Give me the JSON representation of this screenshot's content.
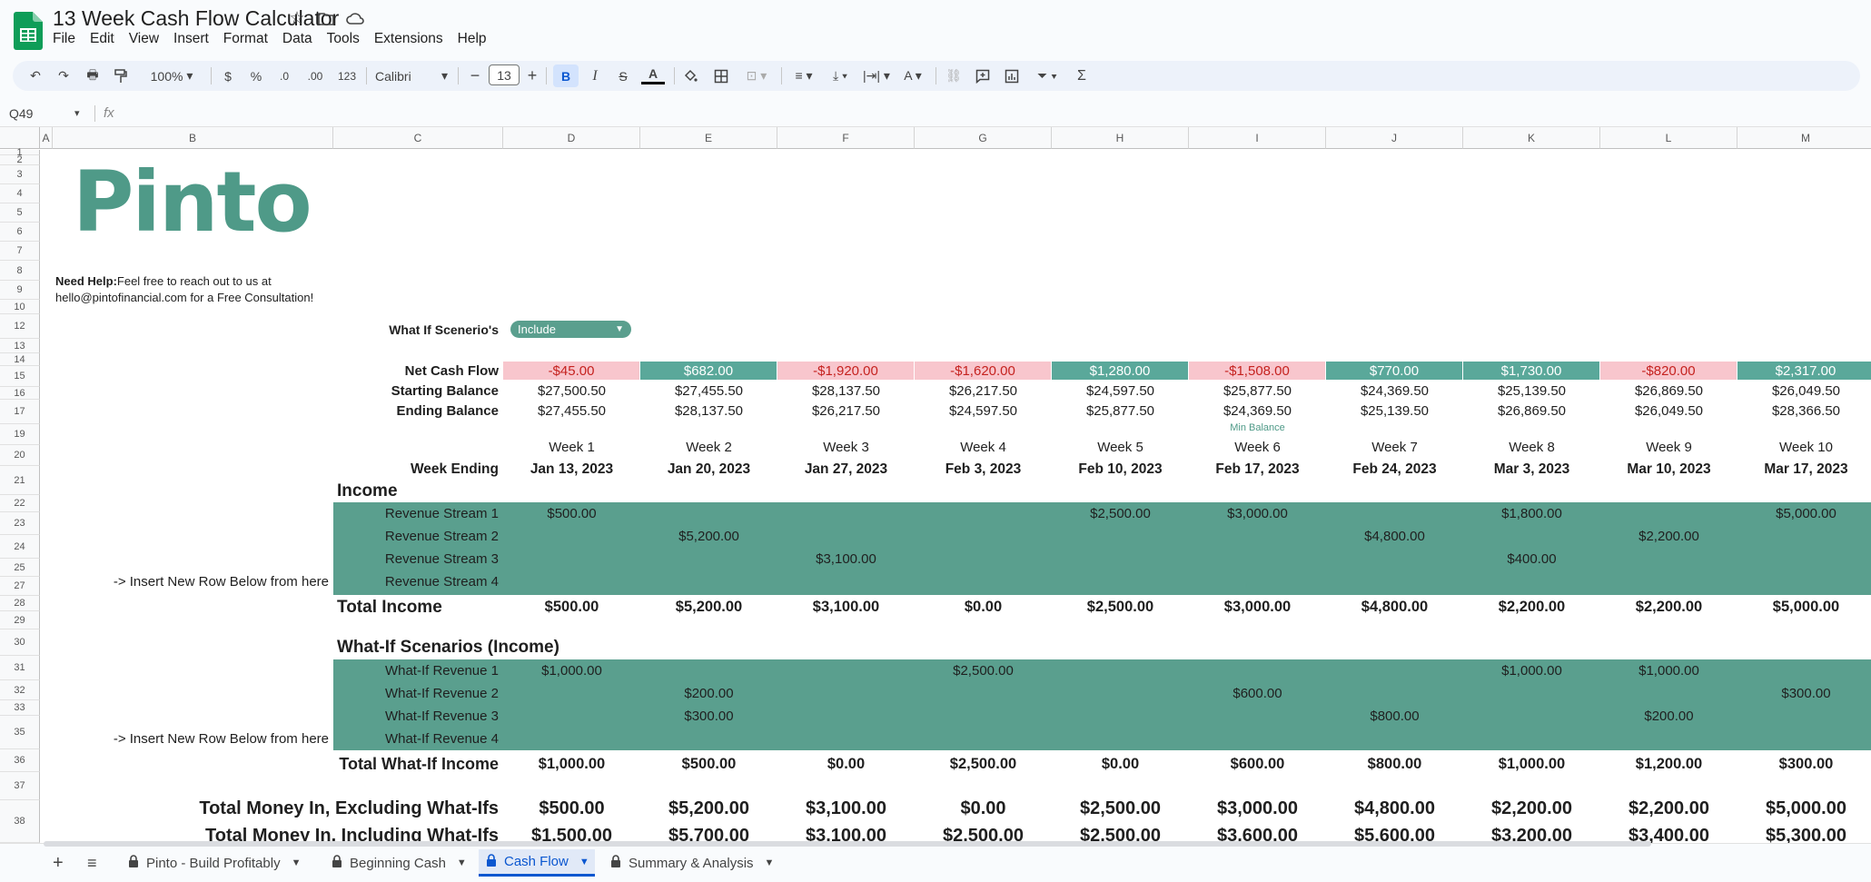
{
  "doc": {
    "title": "13 Week Cash Flow Calculator",
    "menu": [
      "File",
      "Edit",
      "View",
      "Insert",
      "Format",
      "Data",
      "Tools",
      "Extensions",
      "Help"
    ]
  },
  "toolbar": {
    "zoom": "100%",
    "currency": "$",
    "percent": "%",
    "dec_less": ".0",
    "dec_more": ".00",
    "number_format": "123",
    "font": "Calibri",
    "font_size": "13",
    "bold": "B",
    "italic": "I",
    "strike": "S",
    "text_color": "A"
  },
  "formula_bar": {
    "name_box": "Q49",
    "fx": "fx"
  },
  "columns": [
    "A",
    "B",
    "C",
    "D",
    "E",
    "F",
    "G",
    "H",
    "I",
    "J",
    "K",
    "L",
    "M"
  ],
  "rows": [
    "1",
    "2",
    "3",
    "4",
    "5",
    "6",
    "7",
    "8",
    "9",
    "10",
    "12",
    "13",
    "14",
    "15",
    "16",
    "17",
    "19",
    "20",
    "21",
    "22",
    "23",
    "24",
    "25",
    "27",
    "28",
    "29",
    "30",
    "31",
    "32",
    "33",
    "35",
    "36",
    "37",
    "38"
  ],
  "sheet": {
    "brand": "Pinto",
    "help_label": "Need Help:",
    "help_line1": " Feel free to reach out to us at",
    "help_line2": "hello@pintofinancial.com for a Free Consultation!",
    "whatif_label": "What If Scenerio's",
    "whatif_value": "Include",
    "min_balance": "Min Balance",
    "net_label": "Net Cash Flow",
    "start_label": "Starting Balance",
    "end_label": "Ending Balance",
    "week_ending_label": "Week Ending",
    "income_header": "Income",
    "whatif_header": "What-If Scenarios (Income)",
    "insert_note": "-> Insert New Row Below from here",
    "total_income_label": "Total Income",
    "total_whatif_label": "Total What-If Income",
    "money_in_ex_label": "Total Money In, Excluding What-Ifs",
    "money_in_inc_label": "Total Money In, Including What-Ifs",
    "net": [
      "-$45.00",
      "$682.00",
      "-$1,920.00",
      "-$1,620.00",
      "$1,280.00",
      "-$1,508.00",
      "$770.00",
      "$1,730.00",
      "-$820.00",
      "$2,317.00"
    ],
    "starting": [
      "$27,500.50",
      "$27,455.50",
      "$28,137.50",
      "$26,217.50",
      "$24,597.50",
      "$25,877.50",
      "$24,369.50",
      "$25,139.50",
      "$26,869.50",
      "$26,049.50"
    ],
    "ending": [
      "$27,455.50",
      "$28,137.50",
      "$26,217.50",
      "$24,597.50",
      "$25,877.50",
      "$24,369.50",
      "$25,139.50",
      "$26,869.50",
      "$26,049.50",
      "$28,366.50"
    ],
    "weeks": [
      "Week 1",
      "Week 2",
      "Week 3",
      "Week 4",
      "Week 5",
      "Week 6",
      "Week 7",
      "Week 8",
      "Week 9",
      "Week 10"
    ],
    "dates": [
      "Jan 13, 2023",
      "Jan 20, 2023",
      "Jan 27, 2023",
      "Feb 3, 2023",
      "Feb 10, 2023",
      "Feb 17, 2023",
      "Feb 24, 2023",
      "Mar 3, 2023",
      "Mar 10, 2023",
      "Mar 17, 2023"
    ],
    "revenue": [
      {
        "label": "Revenue Stream 1",
        "values": [
          "$500.00",
          "",
          "",
          "",
          "$2,500.00",
          "$3,000.00",
          "",
          "$1,800.00",
          "",
          "$5,000.00"
        ]
      },
      {
        "label": "Revenue Stream 2",
        "values": [
          "",
          "$5,200.00",
          "",
          "",
          "",
          "",
          "$4,800.00",
          "",
          "$2,200.00",
          ""
        ]
      },
      {
        "label": "Revenue Stream 3",
        "values": [
          "",
          "",
          "$3,100.00",
          "",
          "",
          "",
          "",
          "$400.00",
          "",
          ""
        ]
      },
      {
        "label": "Revenue Stream  4",
        "values": [
          "",
          "",
          "",
          "",
          "",
          "",
          "",
          "",
          "",
          ""
        ]
      }
    ],
    "total_income": [
      "$500.00",
      "$5,200.00",
      "$3,100.00",
      "$0.00",
      "$2,500.00",
      "$3,000.00",
      "$4,800.00",
      "$2,200.00",
      "$2,200.00",
      "$5,000.00"
    ],
    "whatif_rows": [
      {
        "label": "What-If Revenue 1",
        "values": [
          "$1,000.00",
          "",
          "",
          "$2,500.00",
          "",
          "",
          "",
          "$1,000.00",
          "$1,000.00",
          ""
        ]
      },
      {
        "label": "What-If Revenue 2",
        "values": [
          "",
          "$200.00",
          "",
          "",
          "",
          "$600.00",
          "",
          "",
          "",
          "$300.00"
        ]
      },
      {
        "label": "What-If Revenue 3",
        "values": [
          "",
          "$300.00",
          "",
          "",
          "",
          "",
          "$800.00",
          "",
          "$200.00",
          ""
        ]
      },
      {
        "label": "What-If Revenue 4",
        "values": [
          "",
          "",
          "",
          "",
          "",
          "",
          "",
          "",
          "",
          ""
        ]
      }
    ],
    "total_whatif": [
      "$1,000.00",
      "$500.00",
      "$0.00",
      "$2,500.00",
      "$0.00",
      "$600.00",
      "$800.00",
      "$1,000.00",
      "$1,200.00",
      "$300.00"
    ],
    "money_in_ex": [
      "$500.00",
      "$5,200.00",
      "$3,100.00",
      "$0.00",
      "$2,500.00",
      "$3,000.00",
      "$4,800.00",
      "$2,200.00",
      "$2,200.00",
      "$5,000.00"
    ],
    "money_in_inc": [
      "$1,500.00",
      "$5,700.00",
      "$3,100.00",
      "$2,500.00",
      "$2,500.00",
      "$3,600.00",
      "$5,600.00",
      "$3,200.00",
      "$3,400.00",
      "$5,300.00"
    ]
  },
  "tabs": [
    {
      "label": "Pinto - Build Profitably",
      "active": false
    },
    {
      "label": "Beginning Cash",
      "active": false
    },
    {
      "label": "Cash Flow",
      "active": true
    },
    {
      "label": "Summary & Analysis",
      "active": false
    }
  ],
  "colors": {
    "accent": "#0b57d0",
    "green_fill": "#5a9f8e",
    "brand_green": "#4f9a88",
    "negative_fill": "#f8c6cd",
    "negative_text": "#c5221f"
  }
}
